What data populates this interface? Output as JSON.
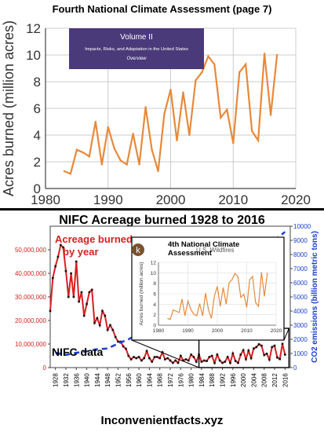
{
  "page": {
    "top_title": "Fourth National Climate Assessment (page 7)",
    "middle_title": "NIFC Acreage burned 1928 to 2016",
    "footer": "Inconvenientfacts.xyz",
    "colors": {
      "orange": "#e8893a",
      "red": "#d62020",
      "blue": "#1a3ecf",
      "banner": "#4a3a7a",
      "badge": "#7a5230"
    }
  },
  "chart_data": [
    {
      "id": "top",
      "type": "line",
      "title": "",
      "xlabel": "",
      "ylabel": "Acres burned (million acres)",
      "xlim": [
        1980,
        2020
      ],
      "ylim": [
        0,
        12
      ],
      "xticks": [
        "1980",
        "1990",
        "2000",
        "2010",
        "2020"
      ],
      "yticks": [
        "0",
        "2",
        "4",
        "6",
        "8",
        "10",
        "12"
      ],
      "banner": {
        "line1": "Volume II",
        "line2": "Impacts, Risks, and Adaptation in the United States",
        "line3": "Overview"
      },
      "series": [
        {
          "x": [
            1983,
            1984,
            1985,
            1986,
            1987,
            1988,
            1989,
            1990,
            1991,
            1992,
            1993,
            1994,
            1995,
            1996,
            1997,
            1998,
            1999,
            2000,
            2001,
            2002,
            2003,
            2004,
            2005,
            2006,
            2007,
            2008,
            2009,
            2010,
            2011,
            2012,
            2013,
            2014,
            2015,
            2016,
            2017
          ],
          "values": [
            1.3,
            1.1,
            2.9,
            2.7,
            2.4,
            5.0,
            1.8,
            4.6,
            3.0,
            2.1,
            1.8,
            4.1,
            1.8,
            6.1,
            2.9,
            1.3,
            5.6,
            7.4,
            3.6,
            7.2,
            4.0,
            8.1,
            8.7,
            9.9,
            9.3,
            5.3,
            5.9,
            3.4,
            8.7,
            9.3,
            4.3,
            3.6,
            10.1,
            5.5,
            10.0
          ]
        }
      ]
    },
    {
      "id": "bottom",
      "type": "line",
      "title": "",
      "ylabel_right": "CO2 emissions (billion metric tons)",
      "xlim": [
        1926,
        2018
      ],
      "ylim": [
        0,
        60000000
      ],
      "y2lim": [
        0,
        10000
      ],
      "yticks": [
        "0",
        "10,000,000",
        "20,000,000",
        "30,000,000",
        "40,000,000",
        "50,000,000"
      ],
      "y2ticks": [
        "0",
        "1000",
        "2000",
        "3000",
        "4000",
        "5000",
        "6000",
        "7000",
        "8000",
        "9000",
        "10000"
      ],
      "xticks": [
        "1928",
        "1932",
        "1936",
        "1940",
        "1944",
        "1948",
        "1952",
        "1956",
        "1960",
        "1964",
        "1968",
        "1972",
        "1976",
        "1980",
        "1984",
        "1988",
        "1992",
        "1996",
        "2000",
        "2004",
        "2008",
        "2012",
        "2016"
      ],
      "annotations": {
        "acreage": "Acreage burned\nby year",
        "nifc": "NIFC data"
      },
      "series": [
        {
          "name": "Acreage burned by year",
          "x": [
            1926,
            1927,
            1928,
            1929,
            1930,
            1931,
            1932,
            1933,
            1934,
            1935,
            1936,
            1937,
            1938,
            1939,
            1940,
            1941,
            1942,
            1943,
            1944,
            1945,
            1946,
            1947,
            1948,
            1949,
            1950,
            1951,
            1952,
            1953,
            1954,
            1955,
            1956,
            1957,
            1958,
            1959,
            1960,
            1961,
            1962,
            1963,
            1964,
            1965,
            1966,
            1967,
            1968,
            1969,
            1970,
            1971,
            1972,
            1973,
            1974,
            1975,
            1976,
            1977,
            1978,
            1979,
            1980,
            1981,
            1982,
            1983,
            1984,
            1985,
            1986,
            1987,
            1988,
            1989,
            1990,
            1991,
            1992,
            1993,
            1994,
            1995,
            1996,
            1997,
            1998,
            1999,
            2000,
            2001,
            2002,
            2003,
            2004,
            2005,
            2006,
            2007,
            2008,
            2009,
            2010,
            2011,
            2012,
            2013,
            2014,
            2015,
            2016
          ],
          "values": [
            24000000,
            38000000,
            43000000,
            47000000,
            52000000,
            51000000,
            41000000,
            30000000,
            40000000,
            30000000,
            45000000,
            28000000,
            32000000,
            22000000,
            27000000,
            32000000,
            33000000,
            19000000,
            21000000,
            18000000,
            24000000,
            22000000,
            16000000,
            18000000,
            16000000,
            13000000,
            11000000,
            11000000,
            9000000,
            8000000,
            5000000,
            3500000,
            4500000,
            4000000,
            4500000,
            3000000,
            4000000,
            7000000,
            4000000,
            2500000,
            4500000,
            4500000,
            4000000,
            6500000,
            3500000,
            4000000,
            3000000,
            2000000,
            3000000,
            2000000,
            5000000,
            3000000,
            3500000,
            3000000,
            5500000,
            4500000,
            2500000,
            5500000,
            2500000,
            3000000,
            2800000,
            4500000,
            5000000,
            2000000,
            5500000,
            3000000,
            2000000,
            2500000,
            4500000,
            2000000,
            6000000,
            2800000,
            2000000,
            5500000,
            7400000,
            3600000,
            7200000,
            4000000,
            8100000,
            8700000,
            9900000,
            9300000,
            5300000,
            5900000,
            3400000,
            8700000,
            9300000,
            4300000,
            3600000,
            10100000,
            5500000
          ]
        },
        {
          "name": "CO2 emissions",
          "axis": "right",
          "x": [
            1928,
            1932,
            1936,
            1940,
            1944,
            1948,
            1952,
            1956,
            1960,
            1964,
            1968,
            1972,
            1976,
            1980,
            1984,
            1988,
            1992,
            1996,
            2000,
            2004,
            2008,
            2012,
            2016
          ],
          "values": [
            1050,
            900,
            1050,
            1150,
            1300,
            1350,
            1700,
            2000,
            2400,
            2800,
            3200,
            3700,
            4100,
            4600,
            4700,
            5200,
            5600,
            6200,
            6800,
            7500,
            8200,
            9000,
            9600
          ]
        }
      ],
      "inset": {
        "badge": "k",
        "title": "4th National Climate\nAssessment",
        "subtitle": "U.S. Wildfires",
        "ylabel": "Acres burned (million acres)",
        "xticks": [
          "1980",
          "1990",
          "2000",
          "2010",
          "2020"
        ],
        "yticks": [
          "0",
          "2",
          "4",
          "6",
          "8",
          "10",
          "12"
        ]
      }
    }
  ]
}
